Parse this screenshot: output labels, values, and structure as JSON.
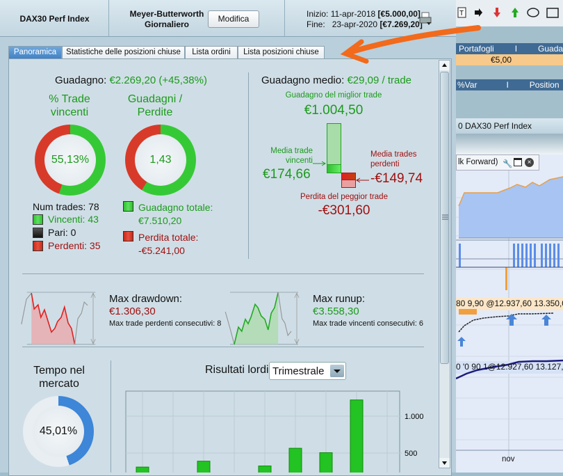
{
  "header": {
    "instrument": "DAX30 Perf Index",
    "system_line1": "Meyer-Butterworth",
    "system_line2": "Giornaliero",
    "modify_label": "Modifica",
    "start_label": "Inizio:",
    "start_date": "11-apr-2018",
    "start_value": "[€5.000,00]",
    "end_label": "Fine:",
    "end_date": "23-apr-2020",
    "end_value": "[€7.269,20]",
    "print_icon": "printer-icon"
  },
  "tabs": [
    {
      "label": "Panoramica",
      "active": true
    },
    {
      "label": "Statistiche delle posizioni chiuse"
    },
    {
      "label": "Lista ordini"
    },
    {
      "label": "Lista posizioni chiuse"
    }
  ],
  "overview": {
    "gain_label": "Guadagno:",
    "gain_value": "€2.269,20 (+45,38%)",
    "win_pct_title_1": "% Trade",
    "win_pct_title_2": "vincenti",
    "win_pct_value": "55,13%",
    "win_fraction": 0.5513,
    "gl_title_1": "Guadagni /",
    "gl_title_2": "Perdite",
    "gl_value": "1,43",
    "gl_fraction": 0.589,
    "num_trades": "Num trades: 78",
    "winners": "Vincenti: 43",
    "even": "Pari: 0",
    "losers": "Perdenti: 35",
    "total_gain_label": "Guadagno totale:",
    "total_gain": "€7.510,20",
    "total_loss_label": "Perdita totale:",
    "total_loss": "-€5.241,00",
    "avg_gain_label": "Guadagno medio:",
    "avg_gain_value": "€29,09 / trade",
    "best_label": "Guadagno del miglior trade",
    "best_value": "€1.004,50",
    "avg_win_label_1": "Media trade",
    "avg_win_label_2": "vincenti",
    "avg_win_value": "€174,66",
    "avg_loss_label_1": "Media trades",
    "avg_loss_label_2": "perdenti",
    "avg_loss_value": "-€149,74",
    "worst_label": "Perdita del peggior trade",
    "worst_value": "-€301,60",
    "drawdown_label": "Max drawdown:",
    "drawdown_value": "€1.306,30",
    "drawdown_sub": "Max trade perdenti consecutivi:  8",
    "runup_label": "Max runup:",
    "runup_value": "€3.558,30",
    "runup_sub": "Max trade vincenti consecutivi: 6",
    "time_label_1": "Tempo nel",
    "time_label_2": "mercato",
    "time_value": "45,01%",
    "time_fraction": 0.4501,
    "results_label": "Risultati lordi",
    "results_period": "Trimestrale"
  },
  "chart_data": {
    "type": "bar",
    "title": "Risultati lordi",
    "values": [
      310,
      null,
      390,
      null,
      325,
      565,
      505,
      1220,
      null
    ],
    "yticks": [
      "1.000",
      "500"
    ],
    "ytick_values": [
      1000,
      500
    ],
    "grid": true,
    "color": "#22c322"
  },
  "right_panel": {
    "portfolio_header": "Portafogli",
    "separator": "I",
    "gain_header": "Guadag",
    "portfolio_value": "€5,00",
    "var_header": "%Var",
    "position_header": "Position",
    "chart_title": "0 DAX30 Perf Index",
    "indicator_label": "lk Forward)",
    "order_row_1": "80   9,90 @12.937,60  13.350,0",
    "order_row_2": "0  '0  90  1@12.927,60  13.127,5",
    "x_label": "nov"
  },
  "colors": {
    "green": "#1c9a1c",
    "red": "#a01010",
    "tab_active": "#4a8ad0",
    "annotation": "#f26a1b"
  }
}
